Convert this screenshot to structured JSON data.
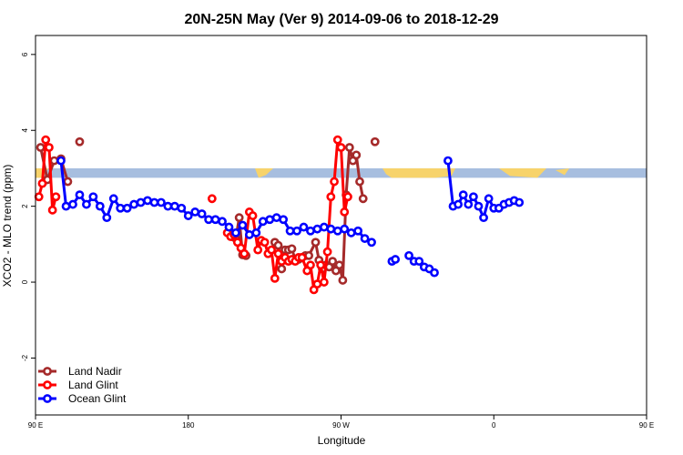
{
  "chart_data": {
    "type": "line",
    "title": "20N-25N May (Ver 9)   2014-09-06 to 2018-12-29",
    "xlabel": "Longitude",
    "ylabel": "XCO2 - MLO trend (ppm)",
    "xlim": [
      90,
      450
    ],
    "ylim": [
      -3.5,
      6.5
    ],
    "x_ticks": [
      {
        "value": 90,
        "label": "90 E"
      },
      {
        "value": 180,
        "label": "180"
      },
      {
        "value": 270,
        "label": "90 W"
      },
      {
        "value": 360,
        "label": "0"
      },
      {
        "value": 450,
        "label": "90 E"
      },
      {
        "value": 540,
        "label": "180"
      }
    ],
    "y_ticks": [
      {
        "value": -2,
        "label": "-2"
      },
      {
        "value": 0,
        "label": "0"
      },
      {
        "value": 2,
        "label": "2"
      },
      {
        "value": 4,
        "label": "4"
      },
      {
        "value": 6,
        "label": "6"
      }
    ],
    "map_band": {
      "y_low": 2.75,
      "y_high": 3.0,
      "ocean_color": "#a7bedf",
      "land_color": "#f7d36b"
    },
    "legend_position": "bottom-left",
    "series": [
      {
        "name": "Land Nadir",
        "color": "#a52a2a",
        "points": [
          [
            93,
            3.55
          ],
          [
            97,
            2.7
          ],
          [
            101,
            3.2
          ],
          [
            105,
            3.25
          ],
          [
            109,
            2.65
          ],
          [
            116,
            3.7
          ],
          [
            206,
            1.2
          ],
          [
            208,
            1.15
          ],
          [
            210,
            1.7
          ],
          [
            212,
            0.72
          ],
          [
            214,
            0.7
          ],
          [
            231,
            1.05
          ],
          [
            233,
            0.97
          ],
          [
            235,
            0.35
          ],
          [
            237,
            0.85
          ],
          [
            239,
            0.85
          ],
          [
            241,
            0.88
          ],
          [
            243,
            0.6
          ],
          [
            245,
            0.6
          ],
          [
            247,
            0.65
          ],
          [
            249,
            0.7
          ],
          [
            251,
            0.7
          ],
          [
            255,
            1.05
          ],
          [
            257,
            0.58
          ],
          [
            259,
            0.35
          ],
          [
            261,
            0.45
          ],
          [
            263,
            0.4
          ],
          [
            265,
            0.55
          ],
          [
            267,
            0.3
          ],
          [
            269,
            0.45
          ],
          [
            271,
            0.05
          ],
          [
            273,
            2.3
          ],
          [
            275,
            3.55
          ],
          [
            277,
            3.2
          ],
          [
            279,
            3.35
          ],
          [
            281,
            2.65
          ],
          [
            283,
            2.2
          ],
          [
            290,
            3.7
          ]
        ],
        "note": "unused"
      },
      {
        "name": "Land Glint",
        "color": "#ff0000",
        "points": [
          [
            92,
            2.25
          ],
          [
            94,
            2.6
          ],
          [
            96,
            3.75
          ],
          [
            98,
            3.55
          ],
          [
            100,
            1.9
          ],
          [
            102,
            2.25
          ],
          [
            194,
            2.2
          ],
          [
            203,
            1.3
          ],
          [
            205,
            1.2
          ],
          [
            207,
            1.25
          ],
          [
            209,
            1.05
          ],
          [
            211,
            0.9
          ],
          [
            213,
            0.75
          ],
          [
            216,
            1.85
          ],
          [
            218,
            1.75
          ],
          [
            221,
            0.85
          ],
          [
            223,
            1.1
          ],
          [
            225,
            1.05
          ],
          [
            227,
            0.75
          ],
          [
            229,
            0.85
          ],
          [
            231,
            0.1
          ],
          [
            233,
            0.75
          ],
          [
            235,
            0.55
          ],
          [
            237,
            0.65
          ],
          [
            239,
            0.55
          ],
          [
            241,
            0.6
          ],
          [
            243,
            0.55
          ],
          [
            245,
            0.65
          ],
          [
            247,
            0.65
          ],
          [
            250,
            0.3
          ],
          [
            252,
            0.45
          ],
          [
            254,
            -0.2
          ],
          [
            256,
            -0.05
          ],
          [
            258,
            0.45
          ],
          [
            260,
            0.0
          ],
          [
            262,
            0.8
          ],
          [
            264,
            2.25
          ],
          [
            266,
            2.65
          ],
          [
            268,
            3.75
          ],
          [
            270,
            3.55
          ],
          [
            272,
            1.85
          ],
          [
            274,
            2.25
          ]
        ]
      },
      {
        "name": "Ocean Glint",
        "color": "#0000ff",
        "points": [
          [
            105,
            3.2
          ],
          [
            108,
            2.0
          ],
          [
            112,
            2.05
          ],
          [
            116,
            2.3
          ],
          [
            120,
            2.05
          ],
          [
            124,
            2.25
          ],
          [
            128,
            2.0
          ],
          [
            132,
            1.7
          ],
          [
            136,
            2.2
          ],
          [
            140,
            1.95
          ],
          [
            144,
            1.95
          ],
          [
            148,
            2.05
          ],
          [
            152,
            2.1
          ],
          [
            156,
            2.15
          ],
          [
            160,
            2.1
          ],
          [
            164,
            2.1
          ],
          [
            168,
            2.0
          ],
          [
            172,
            2.0
          ],
          [
            176,
            1.95
          ],
          [
            180,
            1.75
          ],
          [
            184,
            1.85
          ],
          [
            188,
            1.8
          ],
          [
            192,
            1.65
          ],
          [
            196,
            1.65
          ],
          [
            200,
            1.6
          ],
          [
            204,
            1.45
          ],
          [
            208,
            1.3
          ],
          [
            212,
            1.5
          ],
          [
            216,
            1.25
          ],
          [
            220,
            1.3
          ],
          [
            224,
            1.6
          ],
          [
            228,
            1.65
          ],
          [
            232,
            1.7
          ],
          [
            236,
            1.65
          ],
          [
            240,
            1.35
          ],
          [
            244,
            1.35
          ],
          [
            248,
            1.45
          ],
          [
            252,
            1.35
          ],
          [
            256,
            1.4
          ],
          [
            260,
            1.45
          ],
          [
            264,
            1.4
          ],
          [
            268,
            1.35
          ],
          [
            272,
            1.4
          ],
          [
            276,
            1.3
          ],
          [
            280,
            1.35
          ],
          [
            284,
            1.15
          ],
          [
            288,
            1.05
          ],
          [
            300,
            0.55
          ],
          [
            302,
            0.6
          ],
          [
            310,
            0.7
          ],
          [
            313,
            0.55
          ],
          [
            316,
            0.55
          ],
          [
            319,
            0.4
          ],
          [
            322,
            0.35
          ],
          [
            325,
            0.25
          ],
          [
            333,
            3.2
          ],
          [
            336,
            2.0
          ],
          [
            339,
            2.05
          ],
          [
            342,
            2.3
          ],
          [
            345,
            2.05
          ],
          [
            348,
            2.25
          ],
          [
            351,
            2.0
          ],
          [
            354,
            1.7
          ],
          [
            357,
            2.2
          ],
          [
            360,
            1.95
          ],
          [
            363,
            1.95
          ],
          [
            366,
            2.05
          ],
          [
            369,
            2.1
          ],
          [
            372,
            2.15
          ],
          [
            375,
            2.1
          ]
        ]
      }
    ]
  }
}
